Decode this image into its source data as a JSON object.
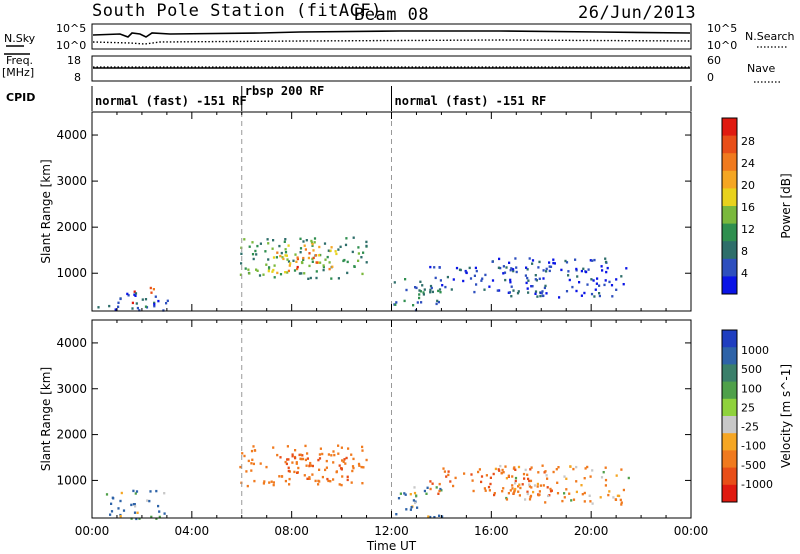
{
  "header": {
    "station": "South Pole Station (fitACF)",
    "beam": "Beam 08",
    "date": "26/Jun/2013"
  },
  "top_panels": {
    "nsky_label": "N.Sky",
    "nsky_ticks": [
      "10^5",
      "10^0"
    ],
    "nsearch_label": "N.Search",
    "nsearch_ticks": [
      "10^5",
      "10^0"
    ],
    "freq_label_1": "Freq.",
    "freq_label_2": "[MHz]",
    "freq_ticks": [
      "18",
      "8"
    ],
    "nave_label": "Nave",
    "nave_ticks": [
      "60",
      "0"
    ],
    "cpid_label": "CPID",
    "cpid_segments": [
      {
        "start": 0,
        "end": 6,
        "label": "normal (fast) -151 RF"
      },
      {
        "start": 6,
        "end": 12,
        "label": "rbsp 200 RF"
      },
      {
        "start": 12,
        "end": 24,
        "label": "normal (fast) -151 RF"
      }
    ]
  },
  "colors": {
    "power_scale": [
      "#0a14e6",
      "#2e4fbe",
      "#2e6e6a",
      "#2f8f4f",
      "#7ab83c",
      "#e8d21c",
      "#f5a623",
      "#f07a1e",
      "#e84e18",
      "#e01a10"
    ],
    "velocity_scale": [
      "#1f3ec0",
      "#2e63a8",
      "#3a7f6a",
      "#4fa04a",
      "#8fd23c",
      "#c8c8c8",
      "#f5a623",
      "#f07a1e",
      "#e84e18",
      "#e01a10"
    ]
  },
  "chart_data": [
    {
      "type": "heatmap",
      "panel": "power",
      "xlabel": "Time UT",
      "ylabel": "Slant Range [km]",
      "xlim": [
        0,
        24
      ],
      "ylim": [
        180,
        4500
      ],
      "xticks": [
        "00:00",
        "04:00",
        "08:00",
        "12:00",
        "16:00",
        "20:00",
        "00:00"
      ],
      "yticks": [
        1000,
        2000,
        3000,
        4000
      ],
      "colorbar_label": "Power [dB]",
      "colorbar_ticks": [
        "28",
        "24",
        "20",
        "16",
        "12",
        "8",
        "4"
      ],
      "clim": [
        0,
        30
      ],
      "cpid_boundaries": [
        6,
        12
      ],
      "regions": [
        {
          "t": [
            1.4,
            1.7
          ],
          "r": [
            200,
            800
          ],
          "value": 26
        },
        {
          "t": [
            2.2,
            2.5
          ],
          "r": [
            200,
            750
          ],
          "value": 26
        },
        {
          "t": [
            0.2,
            3.0
          ],
          "r": [
            180,
            600
          ],
          "value": 6
        },
        {
          "t": [
            5.9,
            11.0
          ],
          "r": [
            900,
            1800
          ],
          "value": 10
        },
        {
          "t": [
            7.0,
            9.8
          ],
          "r": [
            1000,
            1700
          ],
          "value": 18
        },
        {
          "t": [
            8.0,
            9.0
          ],
          "r": [
            1100,
            1500
          ],
          "value": 24
        },
        {
          "t": [
            12.0,
            14.0
          ],
          "r": [
            200,
            900
          ],
          "value": 8
        },
        {
          "t": [
            13.5,
            18.5
          ],
          "r": [
            600,
            1200
          ],
          "value": 5
        },
        {
          "t": [
            16.0,
            21.5
          ],
          "r": [
            500,
            1350
          ],
          "value": 4
        }
      ]
    },
    {
      "type": "heatmap",
      "panel": "velocity",
      "xlabel": "Time UT",
      "ylabel": "Slant Range [km]",
      "xlim": [
        0,
        24
      ],
      "ylim": [
        180,
        4500
      ],
      "xticks": [
        "00:00",
        "04:00",
        "08:00",
        "12:00",
        "16:00",
        "20:00",
        "00:00"
      ],
      "yticks": [
        1000,
        2000,
        3000,
        4000
      ],
      "colorbar_label": "Velocity [m s^-1]",
      "colorbar_ticks": [
        "1000",
        "500",
        "100",
        "25",
        "-25",
        "-100",
        "-500",
        "-1000"
      ],
      "clim": [
        -1000,
        1000
      ],
      "cpid_boundaries": [
        6,
        12
      ],
      "regions": [
        {
          "t": [
            0.5,
            3.0
          ],
          "r": [
            180,
            800
          ],
          "value": 100
        },
        {
          "t": [
            5.9,
            11.0
          ],
          "r": [
            900,
            1800
          ],
          "value": -300
        },
        {
          "t": [
            7.5,
            10.5
          ],
          "r": [
            1000,
            1600
          ],
          "value": -600
        },
        {
          "t": [
            12.0,
            14.0
          ],
          "r": [
            200,
            900
          ],
          "value": 100
        },
        {
          "t": [
            13.5,
            18.5
          ],
          "r": [
            700,
            1300
          ],
          "value": -500
        },
        {
          "t": [
            16.0,
            21.5
          ],
          "r": [
            500,
            1350
          ],
          "value": -150
        }
      ]
    }
  ]
}
